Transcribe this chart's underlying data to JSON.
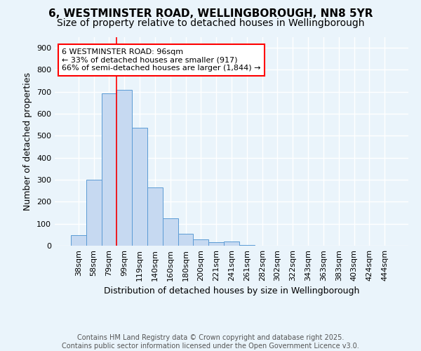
{
  "title_line1": "6, WESTMINSTER ROAD, WELLINGBOROUGH, NN8 5YR",
  "title_line2": "Size of property relative to detached houses in Wellingborough",
  "xlabel": "Distribution of detached houses by size in Wellingborough",
  "ylabel": "Number of detached properties",
  "categories": [
    "38sqm",
    "58sqm",
    "79sqm",
    "99sqm",
    "119sqm",
    "140sqm",
    "160sqm",
    "180sqm",
    "200sqm",
    "221sqm",
    "241sqm",
    "261sqm",
    "282sqm",
    "302sqm",
    "322sqm",
    "343sqm",
    "363sqm",
    "383sqm",
    "403sqm",
    "424sqm",
    "444sqm"
  ],
  "values": [
    48,
    300,
    693,
    710,
    537,
    264,
    125,
    54,
    28,
    15,
    18,
    3,
    1,
    0,
    0,
    0,
    1,
    0,
    0,
    0,
    1
  ],
  "bar_color": "#c6d9f1",
  "bar_edge_color": "#5b9bd5",
  "vline_x_index": 3.0,
  "vline_color": "red",
  "annotation_text": "6 WESTMINSTER ROAD: 96sqm\n← 33% of detached houses are smaller (917)\n66% of semi-detached houses are larger (1,844) →",
  "annotation_box_color": "white",
  "annotation_box_edge_color": "red",
  "ylim": [
    0,
    950
  ],
  "yticks": [
    0,
    100,
    200,
    300,
    400,
    500,
    600,
    700,
    800,
    900
  ],
  "footnote": "Contains HM Land Registry data © Crown copyright and database right 2025.\nContains public sector information licensed under the Open Government Licence v3.0.",
  "bg_color": "#eaf4fb",
  "plot_bg_color": "#eaf4fb",
  "grid_color": "white",
  "title_fontsize": 11,
  "subtitle_fontsize": 10,
  "tick_fontsize": 8,
  "label_fontsize": 9,
  "ylabel_fontsize": 9,
  "footnote_fontsize": 7,
  "annotation_fontsize": 8
}
